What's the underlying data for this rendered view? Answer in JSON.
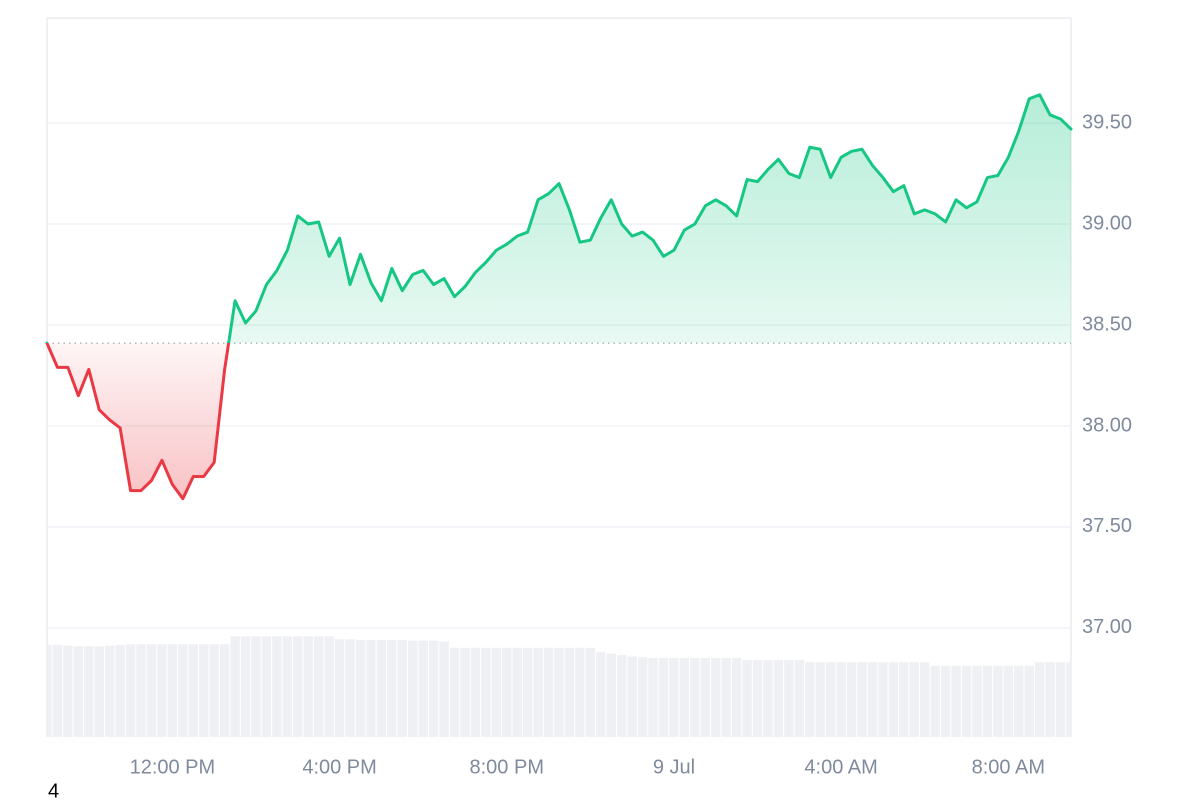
{
  "chart_data": {
    "type": "line",
    "x": [
      9,
      9.25,
      9.5,
      9.75,
      10,
      10.25,
      10.5,
      10.75,
      11,
      11.25,
      11.5,
      11.75,
      12,
      12.25,
      12.5,
      12.75,
      13,
      13.25,
      13.5,
      13.75,
      14,
      14.25,
      14.5,
      14.75,
      15,
      15.25,
      15.5,
      15.75,
      16,
      16.25,
      16.5,
      16.75,
      17,
      17.25,
      17.5,
      17.75,
      18,
      18.25,
      18.5,
      18.75,
      19,
      19.25,
      19.5,
      19.75,
      20,
      20.25,
      20.5,
      20.75,
      21,
      21.25,
      21.5,
      21.75,
      22,
      22.25,
      22.5,
      22.75,
      23,
      23.25,
      23.5,
      23.75,
      24,
      24.25,
      24.5,
      24.75,
      25,
      25.25,
      25.5,
      25.75,
      26,
      26.25,
      26.5,
      26.75,
      27,
      27.25,
      27.5,
      27.75,
      28,
      28.25,
      28.5,
      28.75,
      29,
      29.25,
      29.5,
      29.75,
      30,
      30.25,
      30.5,
      30.75,
      31,
      31.25,
      31.5,
      31.75,
      32,
      32.25,
      32.5,
      32.75,
      33,
      33.25,
      33.5
    ],
    "values": [
      38.41,
      38.29,
      38.29,
      38.15,
      38.28,
      38.08,
      38.03,
      37.99,
      37.68,
      37.68,
      37.73,
      37.83,
      37.71,
      37.64,
      37.75,
      37.75,
      37.82,
      38.28,
      38.62,
      38.51,
      38.57,
      38.7,
      38.77,
      38.87,
      39.04,
      39.0,
      39.01,
      38.84,
      38.93,
      38.7,
      38.85,
      38.71,
      38.62,
      38.78,
      38.67,
      38.75,
      38.77,
      38.7,
      38.73,
      38.64,
      38.69,
      38.76,
      38.81,
      38.87,
      38.9,
      38.94,
      38.96,
      39.12,
      39.15,
      39.2,
      39.07,
      38.91,
      38.92,
      39.03,
      39.12,
      39.0,
      38.94,
      38.96,
      38.92,
      38.84,
      38.87,
      38.97,
      39.0,
      39.09,
      39.12,
      39.09,
      39.04,
      39.22,
      39.21,
      39.27,
      39.32,
      39.25,
      39.23,
      39.38,
      39.37,
      39.23,
      39.33,
      39.36,
      39.37,
      39.29,
      39.23,
      39.16,
      39.19,
      39.05,
      39.07,
      39.05,
      39.01,
      39.12,
      39.08,
      39.11,
      39.23,
      39.24,
      39.33,
      39.46,
      39.62,
      39.64,
      39.54,
      39.52,
      39.47
    ],
    "baseline": 38.41,
    "up_color": "#16c784",
    "down_color": "#ea3943",
    "volume": {
      "axis": "y2",
      "color": "#eef0f3",
      "values": [
        12.8,
        12.8,
        12.7,
        12.6,
        12.6,
        12.6,
        12.7,
        12.8,
        12.9,
        12.9,
        12.9,
        12.9,
        12.9,
        12.9,
        12.9,
        12.9,
        12.9,
        12.9,
        14.0,
        14.0,
        14.0,
        14.0,
        14.0,
        14.0,
        14.0,
        14.0,
        14.0,
        14.0,
        13.6,
        13.6,
        13.5,
        13.5,
        13.5,
        13.5,
        13.5,
        13.4,
        13.4,
        13.4,
        13.3,
        12.4,
        12.4,
        12.4,
        12.4,
        12.4,
        12.4,
        12.4,
        12.4,
        12.4,
        12.4,
        12.4,
        12.4,
        12.4,
        12.4,
        11.8,
        11.6,
        11.4,
        11.2,
        11.1,
        11.0,
        11.0,
        11.0,
        11.0,
        11.0,
        11.0,
        11.0,
        11.0,
        11.0,
        10.7,
        10.7,
        10.7,
        10.7,
        10.7,
        10.7,
        10.4,
        10.4,
        10.4,
        10.4,
        10.4,
        10.4,
        10.4,
        10.4,
        10.4,
        10.4,
        10.4,
        10.4,
        9.9,
        9.9,
        9.9,
        9.9,
        9.9,
        9.9,
        9.9,
        9.9,
        9.9,
        9.9,
        10.4,
        10.4,
        10.4,
        10.4
      ]
    },
    "xlim": [
      9,
      33.5
    ],
    "ylim": [
      36.46,
      40.02
    ],
    "y2lim": [
      0,
      100
    ],
    "xticks": [
      {
        "value": 12,
        "label": "12:00 PM"
      },
      {
        "value": 16,
        "label": "4:00 PM"
      },
      {
        "value": 20,
        "label": "8:00 PM"
      },
      {
        "value": 24,
        "label": "9 Jul"
      },
      {
        "value": 28,
        "label": "4:00 AM"
      },
      {
        "value": 32,
        "label": "8:00 AM"
      }
    ],
    "yticks": [
      {
        "value": 37,
        "label": "37.00"
      },
      {
        "value": 37.5,
        "label": "37.50"
      },
      {
        "value": 38,
        "label": "38.00"
      },
      {
        "value": 38.5,
        "label": "38.50"
      },
      {
        "value": 39,
        "label": "39.00"
      },
      {
        "value": 39.5,
        "label": "39.50"
      }
    ],
    "grid": true,
    "corner_label": "4"
  }
}
